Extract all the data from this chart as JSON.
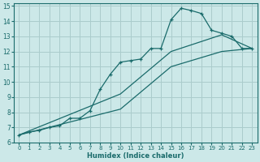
{
  "xlabel": "Humidex (Indice chaleur)",
  "bg_color": "#cce8e8",
  "grid_color": "#aacccc",
  "line_color": "#1a6b6b",
  "xlim": [
    -0.5,
    23.5
  ],
  "ylim": [
    6,
    15.2
  ],
  "xticks": [
    0,
    1,
    2,
    3,
    4,
    5,
    6,
    7,
    8,
    9,
    10,
    11,
    12,
    13,
    14,
    15,
    16,
    17,
    18,
    19,
    20,
    21,
    22,
    23
  ],
  "yticks": [
    6,
    7,
    8,
    9,
    10,
    11,
    12,
    13,
    14,
    15
  ],
  "line1_x": [
    0,
    1,
    2,
    3,
    4,
    5,
    6,
    7,
    8,
    9,
    10,
    11,
    12,
    13,
    14,
    15,
    16,
    17,
    18,
    19,
    20,
    21,
    22,
    23
  ],
  "line1_y": [
    6.5,
    6.7,
    6.8,
    7.0,
    7.1,
    7.6,
    7.6,
    8.1,
    9.5,
    10.5,
    11.3,
    11.4,
    11.5,
    12.2,
    12.2,
    14.1,
    14.85,
    14.7,
    14.5,
    13.4,
    13.2,
    13.0,
    12.2,
    12.2
  ],
  "line2_x": [
    0,
    23
  ],
  "line2_y": [
    6.5,
    12.2
  ],
  "line3_x": [
    0,
    23
  ],
  "line3_y": [
    6.5,
    12.2
  ],
  "line2_waypoints_x": [
    0,
    10,
    15,
    20,
    23
  ],
  "line2_waypoints_y": [
    6.5,
    9.2,
    12.0,
    13.1,
    12.2
  ],
  "line3_waypoints_x": [
    0,
    10,
    15,
    20,
    23
  ],
  "line3_waypoints_y": [
    6.5,
    8.2,
    11.0,
    12.0,
    12.2
  ]
}
